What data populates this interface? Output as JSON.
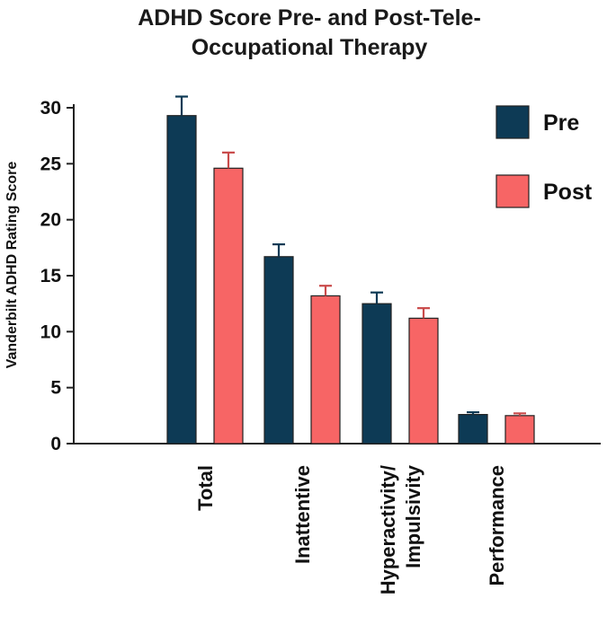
{
  "chart_data": {
    "type": "bar",
    "title_lines": [
      "ADHD Score Pre- and Post-Tele-",
      "Occupational Therapy"
    ],
    "ylabel": "Vanderbilt ADHD Rating Score",
    "xlabel": "",
    "ylim": [
      0,
      30
    ],
    "yticks": [
      0,
      5,
      10,
      15,
      20,
      25,
      30
    ],
    "categories": [
      [
        "Total"
      ],
      [
        "Inattentive"
      ],
      [
        "Hyperactivity/",
        "Impulsivity"
      ],
      [
        "Performance"
      ]
    ],
    "series": [
      {
        "name": "Pre",
        "color": "#0d3a55",
        "values": [
          29.3,
          16.7,
          12.5,
          2.6
        ],
        "errors": [
          1.7,
          1.1,
          1.0,
          0.2
        ]
      },
      {
        "name": "Post",
        "color": "#f76565",
        "values": [
          24.6,
          13.2,
          11.2,
          2.5
        ],
        "errors": [
          1.4,
          0.9,
          0.9,
          0.2
        ]
      }
    ],
    "error_colors": [
      "#0d3a55",
      "#c94a4a"
    ],
    "legend_position": "top-right"
  }
}
